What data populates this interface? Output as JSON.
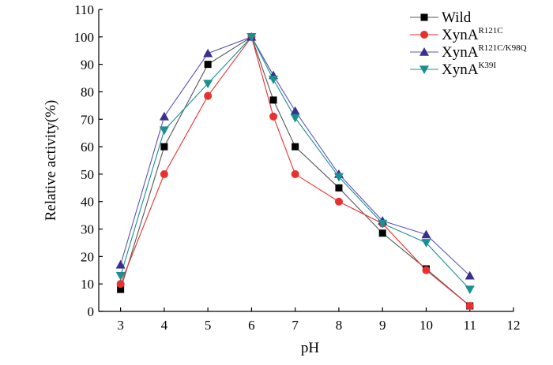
{
  "chart_data": {
    "type": "line",
    "title": "",
    "xlabel": "pH",
    "ylabel": "Relative activity(%)",
    "xlim": [
      2.5,
      12
    ],
    "ylim": [
      0,
      110
    ],
    "x_ticks": [
      3,
      4,
      5,
      6,
      7,
      8,
      9,
      10,
      11,
      12
    ],
    "y_ticks": [
      0,
      10,
      20,
      30,
      40,
      50,
      60,
      70,
      80,
      90,
      100,
      110
    ],
    "grid": false,
    "legend_position": "top-right",
    "series": [
      {
        "name": "Wild",
        "name_base": "Wild",
        "name_sup": "",
        "marker": "square",
        "color": "#000000",
        "line_color": "#555555",
        "x": [
          3,
          4,
          5,
          6,
          6.5,
          7,
          8,
          9,
          10,
          11
        ],
        "values": [
          8,
          60,
          90,
          100,
          77,
          60,
          45,
          28.5,
          15.5,
          2
        ]
      },
      {
        "name": "XynA R121C",
        "name_base": "XynA",
        "name_sup": "R121C",
        "marker": "circle",
        "color": "#e8312f",
        "line_color": "#e8312f",
        "x": [
          3,
          4,
          5,
          6,
          6.5,
          7,
          8,
          9,
          10,
          11
        ],
        "values": [
          10,
          50,
          78.5,
          100,
          71,
          50,
          40,
          32,
          15,
          2
        ]
      },
      {
        "name": "XynA R121C/K98Q",
        "name_base": "XynA",
        "name_sup": "R121C/K98Q",
        "marker": "triangle-up",
        "color": "#3a2f8f",
        "line_color": "#5b55b8",
        "x": [
          3,
          4,
          5,
          6,
          6.5,
          7,
          8,
          9,
          10,
          11
        ],
        "values": [
          17,
          71,
          94,
          100,
          86,
          73,
          50,
          33,
          28,
          13
        ]
      },
      {
        "name": "XynA K39I",
        "name_base": "XynA",
        "name_sup": "K39I",
        "marker": "triangle-down",
        "color": "#1a9090",
        "line_color": "#1a9090",
        "x": [
          3,
          4,
          5,
          6,
          6.5,
          7,
          8,
          9,
          10,
          11
        ],
        "values": [
          13,
          66,
          83,
          100,
          84.5,
          70.5,
          49,
          32,
          25,
          8
        ]
      }
    ]
  }
}
